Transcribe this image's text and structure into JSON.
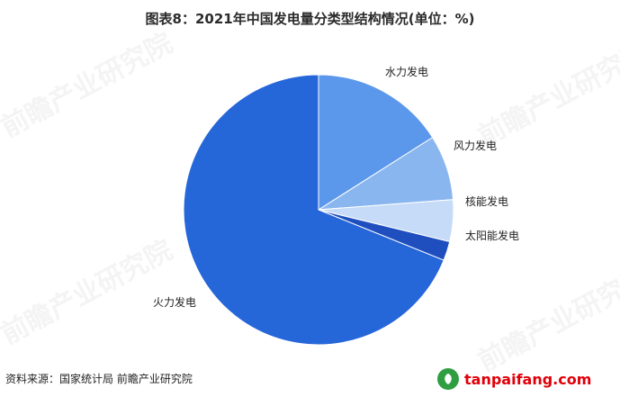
{
  "header": {
    "title": "图表8：2021年中国发电量分类型结构情况(单位：%)"
  },
  "watermark": {
    "text": "前瞻产业研究院"
  },
  "footer": {
    "source": "资料来源：国家统计局 前瞻产业研究院",
    "brand": "tanpaifang.com"
  },
  "chart_data": {
    "type": "pie",
    "title": "图表8：2021年中国发电量分类型结构情况(单位：%)",
    "unit": "%",
    "slices": [
      {
        "label": "水力发电",
        "value": 16.0,
        "color": "#5b97ea"
      },
      {
        "label": "风力发电",
        "value": 7.8,
        "color": "#8ab6f0"
      },
      {
        "label": "核能发电",
        "value": 5.0,
        "color": "#c6dbf7"
      },
      {
        "label": "太阳能发电",
        "value": 2.3,
        "color": "#1f4fbf"
      },
      {
        "label": "火力发电",
        "value": 68.9,
        "color": "#2566d9"
      }
    ],
    "start_angle_deg": 0,
    "direction": "clockwise",
    "legend": "none"
  }
}
